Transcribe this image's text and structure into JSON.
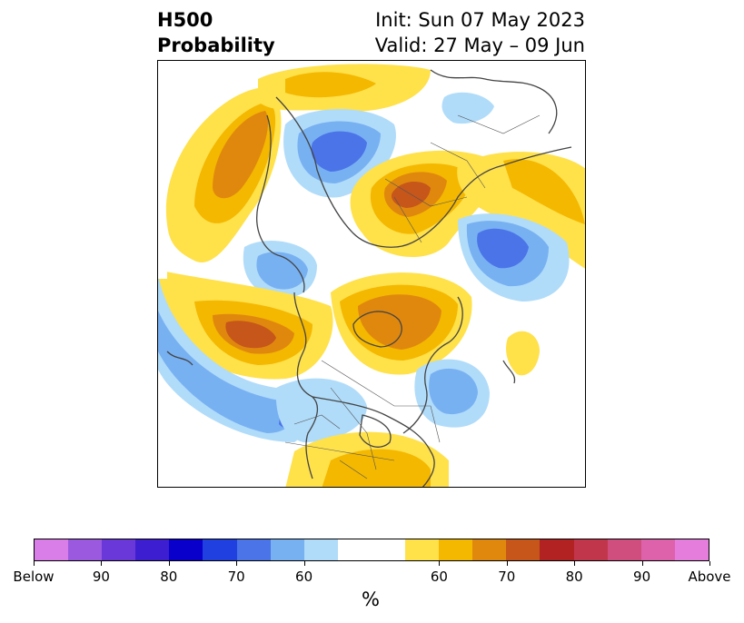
{
  "title": {
    "left_line1": "H500",
    "left_line2": "Probability",
    "right_line1": "Init: Sun 07 May 2023",
    "right_line2": "Valid: 27 May – 09 Jun"
  },
  "colorbar": {
    "colors": [
      "#d97de9",
      "#9b59e0",
      "#6a38d8",
      "#3d1ed0",
      "#0a00cc",
      "#2140e0",
      "#4a74e8",
      "#78b1f2",
      "#b0dcfa",
      "#ffffff",
      "#ffffff",
      "#ffe14a",
      "#f4b800",
      "#e0880e",
      "#c6561a",
      "#b22222",
      "#c2364c",
      "#cf4e7e",
      "#dd62ab",
      "#e57ddd"
    ],
    "ticks": [
      "Below",
      "90",
      "80",
      "70",
      "60",
      "60",
      "70",
      "80",
      "90",
      "Above"
    ],
    "unit": "%"
  },
  "map_palette": {
    "above_60": "#ffe14a",
    "above_65": "#f4b800",
    "above_70": "#e0880e",
    "above_75": "#c6561a",
    "below_60": "#b0dcfa",
    "below_65": "#78b1f2",
    "below_70": "#4a74e8"
  }
}
